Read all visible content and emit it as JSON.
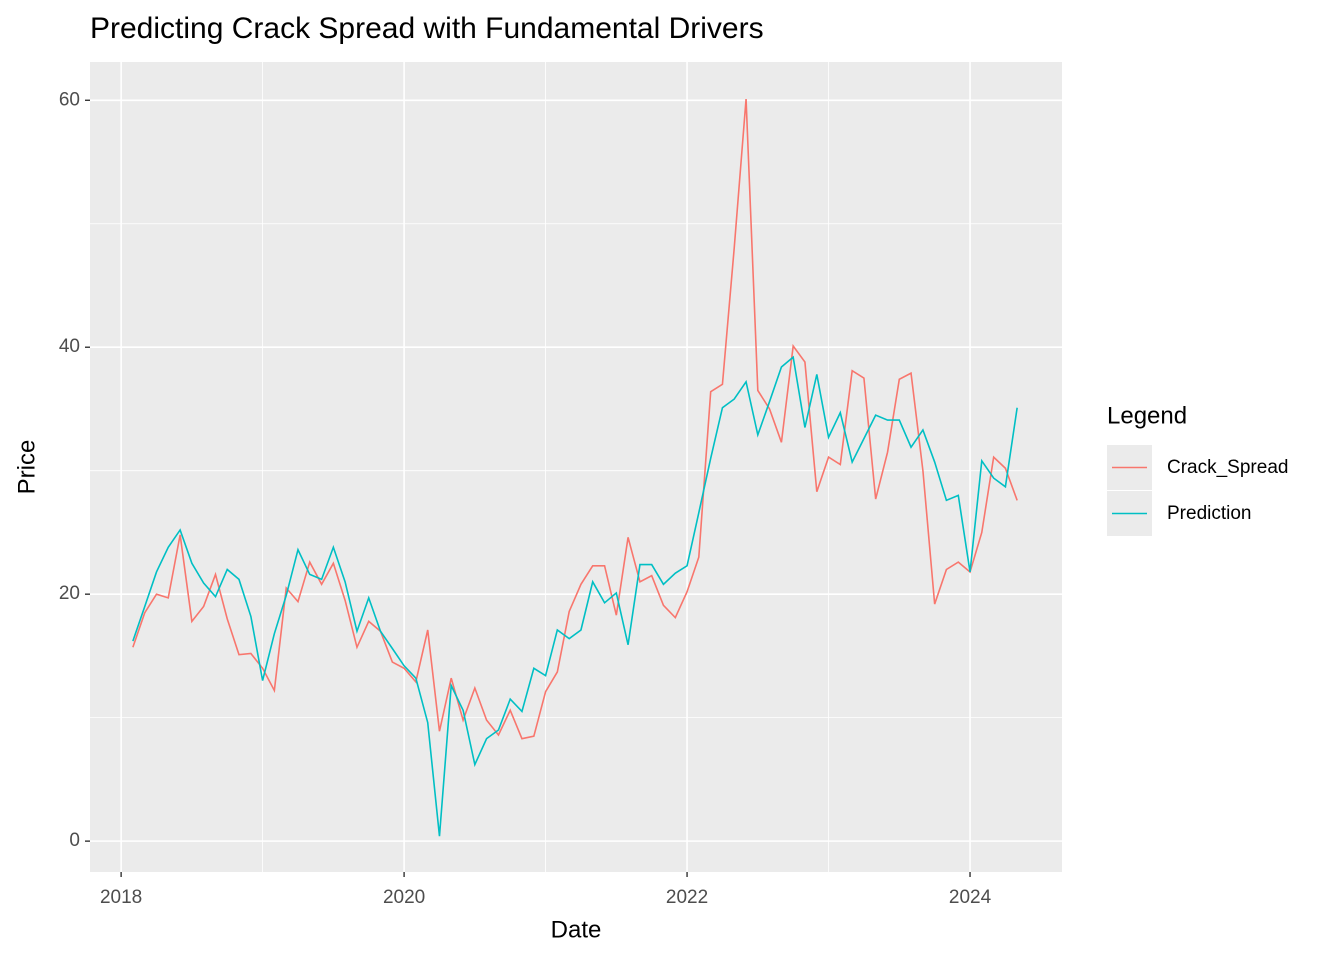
{
  "chart_data": {
    "type": "line",
    "title": "Predicting Crack Spread with Fundamental Drivers",
    "x_label": "Date",
    "y_label": "Price",
    "legend_title": "Legend",
    "legend_position": "right",
    "x": [
      2018.083,
      2018.167,
      2018.25,
      2018.333,
      2018.417,
      2018.5,
      2018.583,
      2018.667,
      2018.75,
      2018.833,
      2018.917,
      2019.0,
      2019.083,
      2019.167,
      2019.25,
      2019.333,
      2019.417,
      2019.5,
      2019.583,
      2019.667,
      2019.75,
      2019.833,
      2019.917,
      2020.0,
      2020.083,
      2020.167,
      2020.25,
      2020.333,
      2020.417,
      2020.5,
      2020.583,
      2020.667,
      2020.75,
      2020.833,
      2020.917,
      2021.0,
      2021.083,
      2021.167,
      2021.25,
      2021.333,
      2021.417,
      2021.5,
      2021.583,
      2021.667,
      2021.75,
      2021.833,
      2021.917,
      2022.0,
      2022.083,
      2022.167,
      2022.25,
      2022.333,
      2022.417,
      2022.5,
      2022.583,
      2022.667,
      2022.75,
      2022.833,
      2022.917,
      2023.0,
      2023.083,
      2023.167,
      2023.25,
      2023.333,
      2023.417,
      2023.5,
      2023.583,
      2023.667,
      2023.75,
      2023.833,
      2023.917,
      2024.0,
      2024.083,
      2024.167,
      2024.25,
      2024.333
    ],
    "series": [
      {
        "name": "Crack_Spread",
        "color": "#F8766D",
        "values": [
          15.7,
          18.5,
          20,
          19.7,
          24.8,
          17.8,
          19,
          21.6,
          18,
          15.1,
          15.2,
          14,
          12.2,
          20.5,
          19.4,
          22.6,
          20.8,
          22.5,
          19.5,
          15.7,
          17.8,
          17,
          14.5,
          14,
          12.9,
          17.1,
          8.9,
          13.2,
          9.8,
          12.4,
          9.8,
          8.6,
          10.6,
          8.3,
          8.5,
          12.1,
          13.7,
          18.6,
          20.8,
          22.3,
          22.3,
          18.3,
          24.6,
          21,
          21.5,
          19.1,
          18.1,
          20.2,
          23,
          36.4,
          37,
          48,
          60.1,
          36.5,
          35,
          32.3,
          40.1,
          38.8,
          28.3,
          31.1,
          30.5,
          38.1,
          37.5,
          27.7,
          31.5,
          37.4,
          37.9,
          30,
          19.2,
          22,
          22.6,
          21.8,
          25,
          31.1,
          30.2,
          27.6
        ]
      },
      {
        "name": "Prediction",
        "color": "#00BFC4",
        "values": [
          16.2,
          19,
          21.8,
          23.8,
          25.2,
          22.5,
          20.9,
          19.8,
          22,
          21.2,
          18.2,
          13,
          16.8,
          19.9,
          23.6,
          21.6,
          21.2,
          23.8,
          21,
          17,
          19.7,
          17,
          15.6,
          14.2,
          13.2,
          9.6,
          0.4,
          12.6,
          10.6,
          6.2,
          8.3,
          9,
          11.5,
          10.5,
          14,
          13.4,
          17.1,
          16.4,
          17.1,
          21,
          19.3,
          20.1,
          15.9,
          22.4,
          22.4,
          20.8,
          21.7,
          22.3,
          26.6,
          31,
          35.1,
          35.8,
          37.2,
          32.9,
          35.6,
          38.4,
          39.2,
          33.5,
          37.8,
          32.7,
          34.7,
          30.7,
          32.6,
          34.5,
          34.1,
          34.1,
          31.9,
          33.3,
          30.7,
          27.6,
          28,
          21.8,
          30.8,
          29.4,
          28.7,
          35.1
        ]
      }
    ],
    "xlim": [
      2017.78,
      2024.65
    ],
    "xticks": [
      2018,
      2020,
      2022,
      2024
    ],
    "xticks_minor": [
      2019,
      2021,
      2023
    ],
    "ylim": [
      -2.5,
      63.1
    ],
    "yticks": [
      0,
      20,
      40,
      60
    ],
    "yticks_minor": [
      10,
      30,
      50
    ],
    "grid": true
  }
}
